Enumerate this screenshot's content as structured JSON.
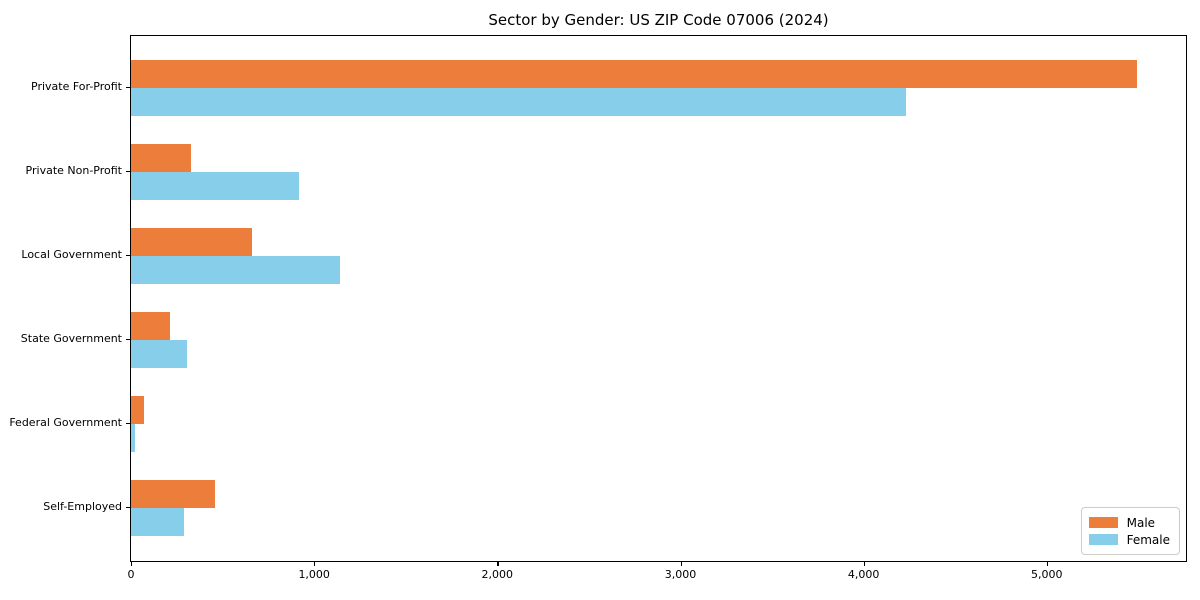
{
  "title": "Sector by Gender: US ZIP Code 07006 (2024)",
  "colors": {
    "male": "#EC7D3A",
    "female": "#87CEEB",
    "axis": "#000000",
    "legend_border": "#cccccc",
    "background": "#ffffff"
  },
  "chart_data": {
    "type": "bar",
    "orientation": "horizontal",
    "title": "Sector by Gender: US ZIP Code 07006 (2024)",
    "categories": [
      "Private For-Profit",
      "Private Non-Profit",
      "Local Government",
      "State Government",
      "Federal Government",
      "Self-Employed"
    ],
    "series": [
      {
        "name": "Male",
        "color": "#EC7D3A",
        "values": [
          5490,
          330,
          660,
          215,
          70,
          460
        ]
      },
      {
        "name": "Female",
        "color": "#87CEEB",
        "values": [
          4230,
          915,
          1140,
          305,
          20,
          290
        ]
      }
    ],
    "xlabel": "",
    "ylabel": "",
    "xlim": [
      0,
      5760
    ],
    "x_ticks": [
      0,
      1000,
      2000,
      3000,
      4000,
      5000
    ],
    "x_tick_labels": [
      "0",
      "1,000",
      "2,000",
      "3,000",
      "4,000",
      "5,000"
    ],
    "grid": false,
    "legend_position": "lower right",
    "legend_entries": [
      "Male",
      "Female"
    ]
  }
}
